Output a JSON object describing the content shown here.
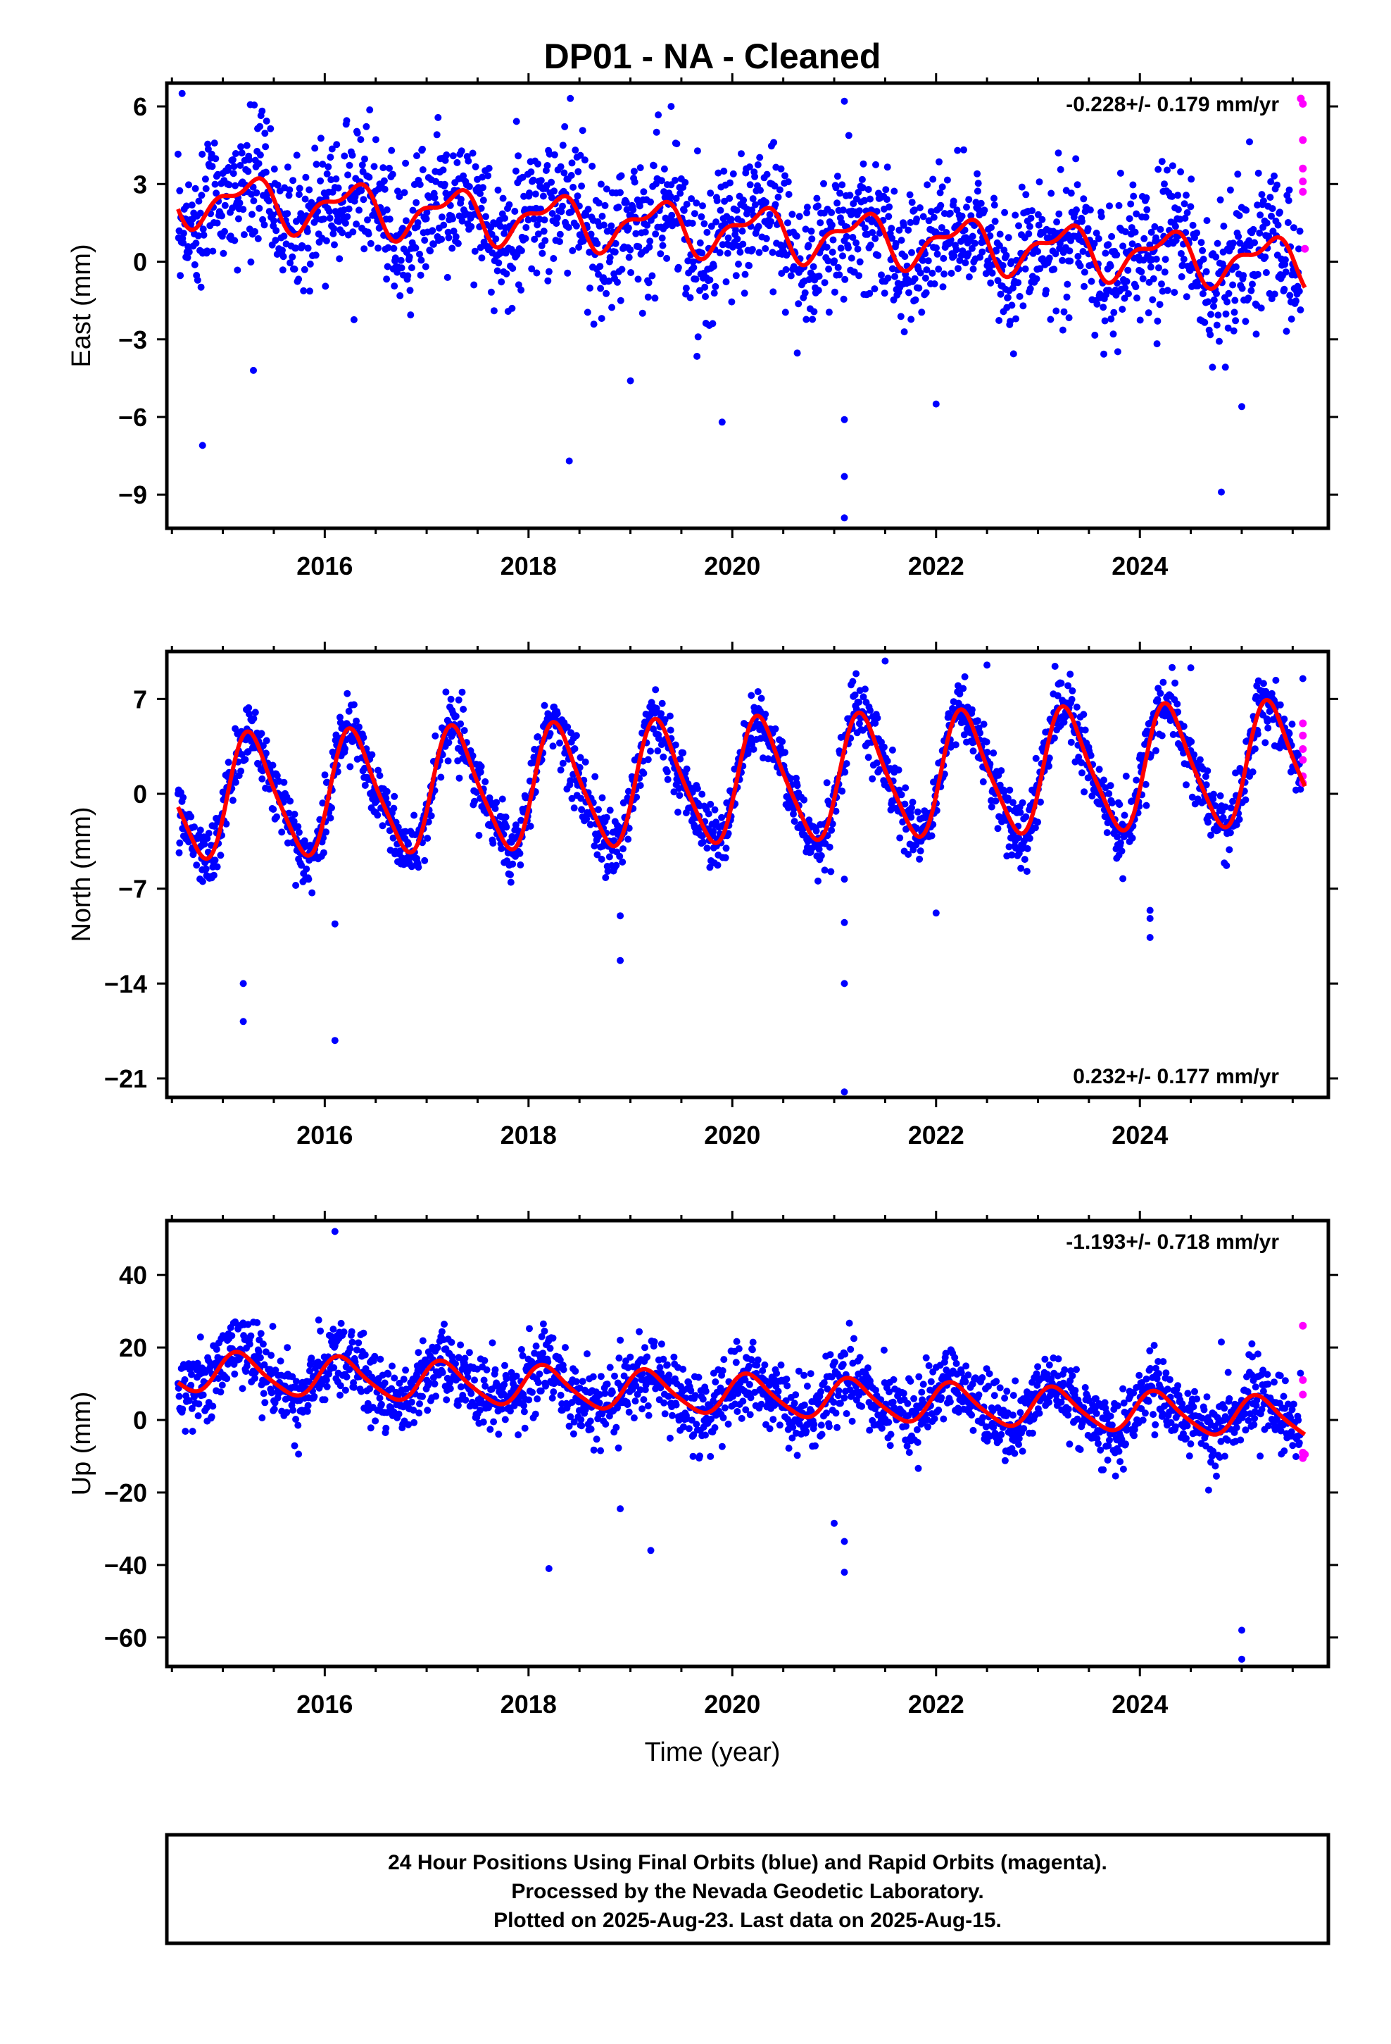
{
  "chart_data": {
    "type": "scatter",
    "title": "DP01  - NA - Cleaned",
    "x_axis": {
      "label": "Time (year)",
      "range": [
        2014.45,
        2025.85
      ],
      "ticks": [
        "2016",
        "2018",
        "2020",
        "2022",
        "2024"
      ]
    },
    "series_colors": {
      "final": "#0000ff",
      "rapid": "#ff00ff",
      "model": "#ff0000"
    },
    "panels": [
      {
        "id": "east",
        "ylabel": "East (mm)",
        "ylim": [
          -10.3,
          6.9
        ],
        "yticks": [
          "6",
          "3",
          "0",
          "−3",
          "−6",
          "−9"
        ],
        "ytick_values": [
          6,
          3,
          0,
          -3,
          -6,
          -9
        ],
        "rate_label": "-0.228+/- 0.179 mm/yr",
        "rate_position": "top-right",
        "model": {
          "offset": 1.2,
          "trend": -0.228,
          "annual_cos": 0.0,
          "annual_sin": 0.85,
          "semi_cos": 0.2,
          "semi_sin": -0.35,
          "noise": 1.3
        },
        "outliers": [
          [
            2014.6,
            6.5
          ],
          [
            2014.8,
            -7.1
          ],
          [
            2018.4,
            -7.7
          ],
          [
            2019.0,
            -4.6
          ],
          [
            2019.4,
            6.0
          ],
          [
            2021.1,
            6.2
          ],
          [
            2021.1,
            -6.1
          ],
          [
            2021.1,
            -8.3
          ],
          [
            2021.1,
            -9.9
          ],
          [
            2022.0,
            -5.5
          ],
          [
            2024.8,
            -8.9
          ],
          [
            2025.0,
            -5.6
          ],
          [
            2019.9,
            -6.2
          ],
          [
            2015.3,
            -4.2
          ]
        ],
        "rapid_points": [
          [
            2025.58,
            6.3
          ],
          [
            2025.6,
            6.1
          ],
          [
            2025.6,
            4.7
          ],
          [
            2025.6,
            3.6
          ],
          [
            2025.6,
            3.1
          ],
          [
            2025.6,
            2.7
          ],
          [
            2025.62,
            0.5
          ]
        ]
      },
      {
        "id": "north",
        "ylabel": "North (mm)",
        "ylim": [
          -22.4,
          10.5
        ],
        "yticks": [
          "7",
          "0",
          "−7",
          "−14",
          "−21"
        ],
        "ytick_values": [
          7,
          0,
          -7,
          -14,
          -21
        ],
        "rate_label": "0.232+/- 0.177 mm/yr",
        "rate_position": "bottom-right",
        "model": {
          "offset": 0.9,
          "trend": 0.232,
          "annual_cos": -1.0,
          "annual_sin": 4.3,
          "semi_cos": -0.5,
          "semi_sin": 0.6,
          "noise": 1.2
        },
        "outliers": [
          [
            2015.2,
            -14.0
          ],
          [
            2015.2,
            -16.8
          ],
          [
            2016.1,
            -18.2
          ],
          [
            2016.1,
            -9.6
          ],
          [
            2018.9,
            -12.3
          ],
          [
            2018.9,
            -9.0
          ],
          [
            2021.1,
            -22.0
          ],
          [
            2021.1,
            -14.0
          ],
          [
            2021.1,
            -9.5
          ],
          [
            2021.1,
            -6.3
          ],
          [
            2022.0,
            -8.8
          ],
          [
            2024.1,
            -9.2
          ],
          [
            2024.1,
            -10.6
          ],
          [
            2024.1,
            -8.6
          ],
          [
            2025.6,
            8.5
          ],
          [
            2021.5,
            9.8
          ],
          [
            2022.5,
            9.5
          ],
          [
            2024.5,
            9.3
          ]
        ],
        "rapid_points": [
          [
            2025.6,
            5.2
          ],
          [
            2025.6,
            4.3
          ],
          [
            2025.6,
            3.3
          ],
          [
            2025.6,
            2.5
          ],
          [
            2025.6,
            1.3
          ],
          [
            2025.6,
            0.8
          ]
        ]
      },
      {
        "id": "up",
        "ylabel": "Up (mm)",
        "ylim": [
          -68,
          55
        ],
        "yticks": [
          "40",
          "20",
          "0",
          "−20",
          "−40",
          "−60"
        ],
        "ytick_values": [
          40,
          20,
          0,
          -20,
          -40,
          -60
        ],
        "rate_label": "-1.193+/- 0.718 mm/yr",
        "rate_position": "top-right",
        "model": {
          "offset": 7.0,
          "trend": -1.193,
          "annual_cos": 2.5,
          "annual_sin": 4.8,
          "semi_cos": 0.5,
          "semi_sin": 0.8,
          "noise": 5.2
        },
        "outliers": [
          [
            2016.1,
            52.0
          ],
          [
            2018.2,
            -41.0
          ],
          [
            2018.9,
            -24.5
          ],
          [
            2019.2,
            -36.0
          ],
          [
            2021.1,
            -42.0
          ],
          [
            2021.1,
            -33.5
          ],
          [
            2021.0,
            -28.5
          ],
          [
            2025.0,
            -58.0
          ],
          [
            2025.0,
            -66.0
          ],
          [
            2025.1,
            21.0
          ],
          [
            2018.9,
            22.0
          ],
          [
            2015.3,
            27.0
          ],
          [
            2024.8,
            21.5
          ]
        ],
        "rapid_points": [
          [
            2025.6,
            26.0
          ],
          [
            2025.6,
            11.0
          ],
          [
            2025.6,
            7.0
          ],
          [
            2025.6,
            -9.0
          ],
          [
            2025.6,
            -10.5
          ],
          [
            2025.62,
            -9.5
          ]
        ]
      }
    ]
  },
  "footer": {
    "line1": "24 Hour Positions Using Final Orbits (blue) and Rapid Orbits (magenta).",
    "line2": "Processed by the Nevada Geodetic Laboratory.",
    "line3": "Plotted on 2025-Aug-23. Last data on 2025-Aug-15."
  }
}
